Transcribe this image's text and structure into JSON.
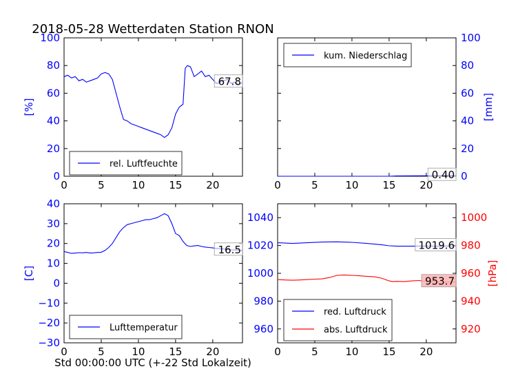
{
  "page": {
    "title": "2018-05-28 Wetterdaten Station RNON",
    "xlabel": "Std 00:00:00 UTC (+-22 Std Lokalzeit)"
  },
  "colors": {
    "blue": "#0000ff",
    "red": "#ff0000",
    "label_bg": "#ffb3b3"
  },
  "chart_data": [
    {
      "type": "line",
      "id": "humidity",
      "ylabel": "[%]",
      "xlim": [
        0,
        24
      ],
      "ylim": [
        0,
        100
      ],
      "xticks": [
        "0",
        "5",
        "10",
        "15",
        "20"
      ],
      "yticks": [
        "0",
        "20",
        "40",
        "60",
        "80",
        "100"
      ],
      "legend": "rel. Luftfeuchte",
      "legend_position": "lower-left",
      "last_value_label": "67.8",
      "series": [
        {
          "name": "rel. Luftfeuchte",
          "color": "#0000ff",
          "x": [
            0,
            0.5,
            1,
            1.5,
            2,
            2.5,
            3,
            3.5,
            4,
            4.5,
            5,
            5.5,
            6,
            6.5,
            7,
            7.5,
            8,
            8.5,
            9,
            9.5,
            10,
            10.5,
            11,
            11.5,
            12,
            12.5,
            13,
            13.5,
            14,
            14.5,
            15,
            15.5,
            16,
            16.3,
            16.6,
            17,
            17.5,
            18,
            18.5,
            19,
            19.5,
            20,
            20.5,
            21,
            21.5,
            22,
            22.5,
            23,
            23.5,
            24
          ],
          "y": [
            72,
            73,
            71,
            72,
            69,
            70,
            68,
            69,
            70,
            71,
            74,
            75,
            74,
            70,
            60,
            50,
            41,
            40,
            38,
            37,
            36,
            35,
            34,
            33,
            32,
            31,
            30,
            28,
            30,
            35,
            45,
            50,
            52,
            78,
            80,
            79,
            72,
            74,
            76,
            72,
            73,
            70,
            67,
            68,
            69,
            70,
            67,
            68,
            66,
            67.8
          ]
        }
      ]
    },
    {
      "type": "line",
      "id": "precipitation",
      "ylabel": "[mm]",
      "xlim": [
        0,
        24
      ],
      "ylim": [
        0,
        100
      ],
      "xticks": [
        "0",
        "5",
        "10",
        "15",
        "20"
      ],
      "yticks": [
        "0",
        "20",
        "40",
        "60",
        "80",
        "100"
      ],
      "legend": "kum. Niederschlag",
      "legend_position": "top-left",
      "last_value_label": "0.40",
      "series": [
        {
          "name": "kum. Niederschlag",
          "color": "#0000ff",
          "x": [
            0,
            5,
            10,
            15,
            15.5,
            16,
            18,
            20,
            22,
            24
          ],
          "y": [
            0,
            0,
            0,
            0,
            0.1,
            0.2,
            0.3,
            0.35,
            0.4,
            0.4
          ]
        }
      ]
    },
    {
      "type": "line",
      "id": "temperature",
      "ylabel": "[C]",
      "xlim": [
        0,
        24
      ],
      "ylim": [
        -30,
        40
      ],
      "xticks": [
        "0",
        "5",
        "10",
        "15",
        "20"
      ],
      "yticks": [
        "−30",
        "−20",
        "−10",
        "0",
        "10",
        "20",
        "30",
        "40"
      ],
      "legend": "Lufttemperatur",
      "legend_position": "lower-left",
      "last_value_label": "16.5",
      "series": [
        {
          "name": "Lufttemperatur",
          "color": "#0000ff",
          "x": [
            0,
            0.5,
            1,
            1.5,
            2,
            2.5,
            3,
            3.5,
            4,
            4.5,
            5,
            5.5,
            6,
            6.5,
            7,
            7.5,
            8,
            8.5,
            9,
            9.5,
            10,
            10.5,
            11,
            11.5,
            12,
            12.5,
            13,
            13.5,
            14,
            14.5,
            15,
            15.5,
            16,
            16.5,
            17,
            17.5,
            18,
            18.5,
            19,
            19.5,
            20,
            20.5,
            21,
            21.5,
            22,
            22.5,
            23,
            23.5,
            24
          ],
          "y": [
            16,
            15.5,
            15,
            15.2,
            15.4,
            15.3,
            15.5,
            15.2,
            15.3,
            15.5,
            15.6,
            16.5,
            18,
            20,
            23,
            26,
            28,
            29.5,
            30,
            30.5,
            31,
            31.5,
            32,
            32,
            32.5,
            33,
            34,
            35,
            34,
            30,
            25,
            24,
            21,
            19,
            18.5,
            18.8,
            19,
            18.5,
            18.2,
            18,
            17.8,
            17.5,
            17.4,
            17.2,
            17,
            16.8,
            16.7,
            16.6,
            16.5
          ]
        }
      ]
    },
    {
      "type": "line",
      "id": "pressure",
      "ylabel": "[hPa]",
      "xlim": [
        0,
        24
      ],
      "ylim": [
        950,
        1050
      ],
      "ylim_right": [
        910,
        1010
      ],
      "xticks": [
        "0",
        "5",
        "10",
        "15",
        "20"
      ],
      "yticks": [
        "960",
        "980",
        "1000",
        "1020",
        "1040"
      ],
      "yticks_right": [
        "920",
        "940",
        "960",
        "980",
        "1000"
      ],
      "legend_position": "lower-left",
      "series": [
        {
          "name": "red. Luftdruck",
          "color": "#0000ff",
          "axis": "left",
          "last_value_label": "1019.6",
          "x": [
            0,
            2,
            4,
            6,
            8,
            10,
            12,
            14,
            15,
            16,
            18,
            20,
            22,
            24
          ],
          "y": [
            1022,
            1021.5,
            1022,
            1022.5,
            1022.6,
            1022.3,
            1021.5,
            1020.5,
            1019.8,
            1019.5,
            1019.5,
            1019.6,
            1019.5,
            1019.6
          ]
        },
        {
          "name": "abs. Luftdruck",
          "color": "#ff0000",
          "axis": "right",
          "last_value_label": "953.7",
          "x": [
            0,
            1,
            2,
            3,
            4,
            5,
            6,
            7,
            8,
            9,
            10,
            11,
            12,
            13,
            14,
            15,
            15.5,
            16,
            17,
            18,
            19,
            20,
            21,
            22,
            23,
            24
          ],
          "y": [
            955.5,
            955.2,
            955,
            955.2,
            955.5,
            955.8,
            956,
            957,
            958.5,
            958.8,
            958.5,
            958.2,
            957.8,
            957.5,
            956.5,
            954.5,
            954,
            954.2,
            954,
            954.5,
            954.8,
            954.3,
            954,
            953.8,
            953.7,
            953.7
          ]
        }
      ]
    }
  ]
}
